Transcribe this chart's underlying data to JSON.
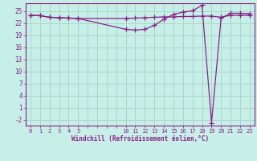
{
  "xlabel": "Windchill (Refroidissement éolien,°C)",
  "bg_color": "#c8eee8",
  "grid_color": "#a8d8c8",
  "line_color": "#882288",
  "hours": [
    0,
    1,
    2,
    3,
    4,
    5,
    10,
    11,
    12,
    13,
    14,
    15,
    16,
    17,
    18,
    19,
    20,
    21,
    22,
    23
  ],
  "line1": [
    24.0,
    23.9,
    23.5,
    23.4,
    23.3,
    23.2,
    23.2,
    23.3,
    23.4,
    23.5,
    23.6,
    23.6,
    23.7,
    23.7,
    23.8,
    23.8,
    23.5,
    24.0,
    24.0,
    24.0
  ],
  "line2": [
    24.0,
    23.9,
    23.5,
    23.4,
    23.3,
    23.2,
    20.5,
    20.3,
    20.5,
    21.5,
    23.0,
    24.2,
    24.8,
    25.1,
    26.5,
    -2.8,
    23.3,
    24.5,
    24.5,
    24.4
  ],
  "yticks": [
    -2,
    1,
    4,
    7,
    10,
    13,
    16,
    19,
    22,
    25
  ],
  "ylim": [
    -3.5,
    27
  ],
  "xlim": [
    -0.5,
    23.5
  ]
}
